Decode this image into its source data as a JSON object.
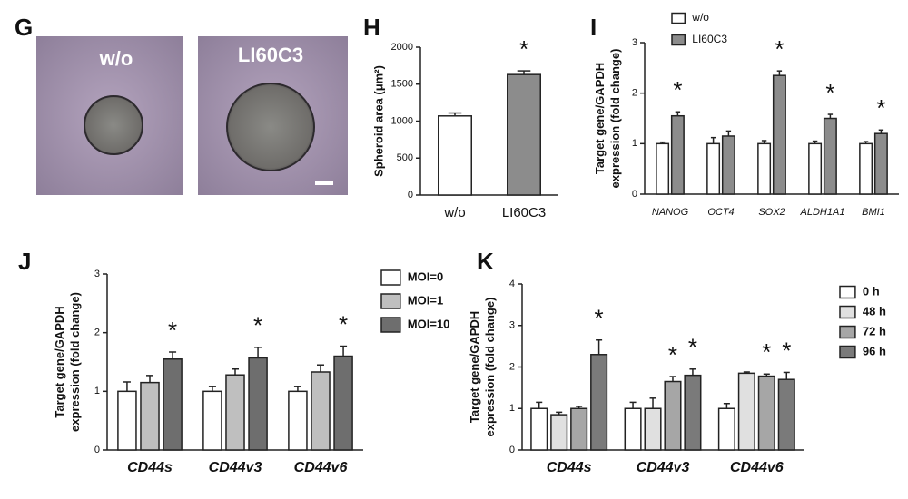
{
  "panel_g": {
    "panel_label": "G",
    "labels": [
      "w/o",
      "LI60C3"
    ]
  },
  "chart_data": [
    {
      "type": "bar",
      "panel_label": "H",
      "ylabel": [
        "Spheroid area (μm²)"
      ],
      "categories": [
        "w/o",
        "LI60C3"
      ],
      "values": [
        1070,
        1630
      ],
      "errors": [
        40,
        50
      ],
      "significance": [
        null,
        "*"
      ],
      "color": "#8c8c8c",
      "colors": [
        "#ffffff",
        "#8c8c8c"
      ],
      "ylim": [
        0,
        2000
      ],
      "yticks": [
        0,
        500,
        1000,
        1500,
        2000
      ]
    },
    {
      "type": "bar",
      "panel_label": "I",
      "ylabel": [
        "Target gene/GAPDH",
        "expression (fold change)"
      ],
      "categories": [
        "NANOG",
        "OCT4",
        "SOX2",
        "ALDH1A1",
        "BMI1"
      ],
      "series": [
        {
          "name": "w/o",
          "color": "#ffffff",
          "values": [
            1.0,
            1.0,
            1.0,
            1.0,
            1.0
          ],
          "errors": [
            0.03,
            0.12,
            0.06,
            0.05,
            0.04
          ]
        },
        {
          "name": "LI60C3",
          "color": "#8c8c8c",
          "values": [
            1.55,
            1.15,
            2.35,
            1.5,
            1.2
          ],
          "errors": [
            0.08,
            0.1,
            0.09,
            0.08,
            0.07
          ],
          "significance": [
            "*",
            null,
            "*",
            "*",
            "*"
          ]
        }
      ],
      "ylim": [
        0,
        3
      ],
      "yticks": [
        0,
        1,
        2,
        3
      ]
    },
    {
      "type": "bar",
      "panel_label": "J",
      "ylabel": [
        "Target gene/GAPDH",
        "expression (fold change)"
      ],
      "categories": [
        "CD44s",
        "CD44v3",
        "CD44v6"
      ],
      "series": [
        {
          "name": "MOI=0",
          "color": "#ffffff",
          "values": [
            1.0,
            1.0,
            1.0
          ],
          "errors": [
            0.16,
            0.08,
            0.08
          ]
        },
        {
          "name": "MOI=1",
          "color": "#bfbfbf",
          "values": [
            1.15,
            1.28,
            1.33
          ],
          "errors": [
            0.12,
            0.1,
            0.12
          ]
        },
        {
          "name": "MOI=10",
          "color": "#6e6e6e",
          "values": [
            1.55,
            1.57,
            1.6
          ],
          "errors": [
            0.12,
            0.18,
            0.17
          ],
          "significance": [
            "*",
            "*",
            "*"
          ]
        }
      ],
      "ylim": [
        0,
        3
      ],
      "yticks": [
        0,
        1,
        2,
        3
      ]
    },
    {
      "type": "bar",
      "panel_label": "K",
      "ylabel": [
        "Target gene/GAPDH",
        "expression (fold change)"
      ],
      "categories": [
        "CD44s",
        "CD44v3",
        "CD44v6"
      ],
      "series": [
        {
          "name": "0 h",
          "color": "#ffffff",
          "values": [
            1.0,
            1.0,
            1.0
          ],
          "errors": [
            0.15,
            0.15,
            0.12
          ]
        },
        {
          "name": "48 h",
          "color": "#e0e0e0",
          "values": [
            0.85,
            1.0,
            1.85
          ],
          "errors": [
            0.06,
            0.25,
            0.03
          ]
        },
        {
          "name": "72 h",
          "color": "#a6a6a6",
          "values": [
            1.0,
            1.65,
            1.78
          ],
          "errors": [
            0.05,
            0.12,
            0.05
          ],
          "significance": [
            null,
            "*",
            "*"
          ]
        },
        {
          "name": "96 h",
          "color": "#7a7a7a",
          "values": [
            2.3,
            1.8,
            1.7
          ],
          "errors": [
            0.35,
            0.15,
            0.17
          ],
          "significance": [
            "*",
            "*",
            "*"
          ]
        }
      ],
      "ylim": [
        0,
        4
      ],
      "yticks": [
        0,
        1,
        2,
        3,
        4
      ]
    }
  ]
}
